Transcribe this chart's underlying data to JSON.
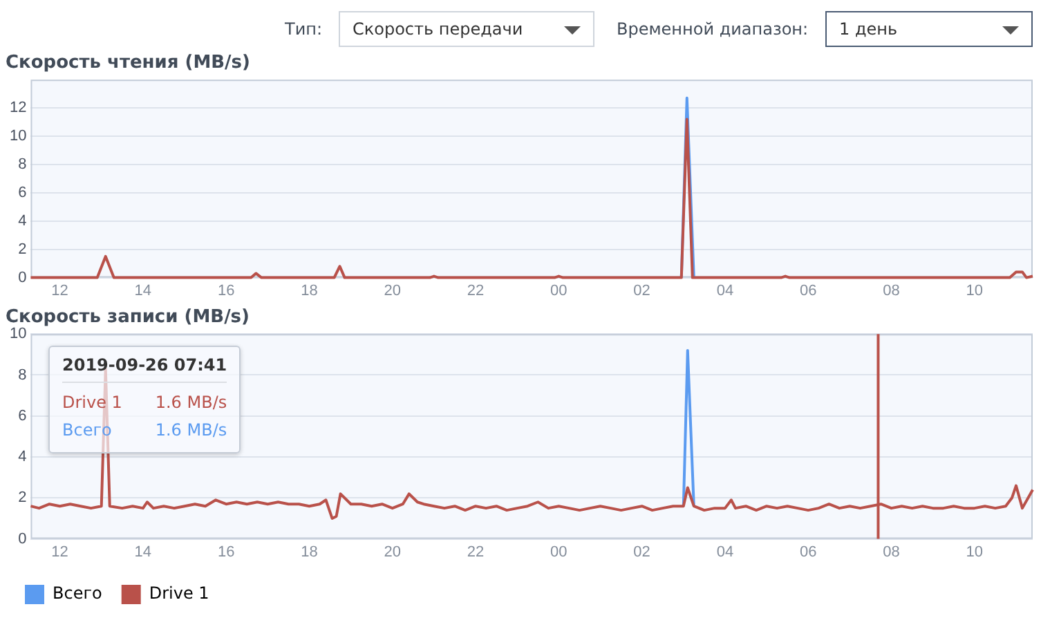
{
  "chart_data": [
    {
      "type": "line",
      "title": "Скорость чтения (MB/s)",
      "annotations": [
        "Тип:",
        "Скорость передачи",
        "Временной диапазон:",
        "1 день"
      ],
      "xlim": [
        "2019-09-25T11:18",
        "2019-09-26T11:24"
      ],
      "xticks": [
        {
          "value": "2019-09-25T12:00",
          "label": "12"
        },
        {
          "value": "2019-09-25T14:00",
          "label": "14"
        },
        {
          "value": "2019-09-25T16:00",
          "label": "16"
        },
        {
          "value": "2019-09-25T18:00",
          "label": "18"
        },
        {
          "value": "2019-09-25T20:00",
          "label": "20"
        },
        {
          "value": "2019-09-25T22:00",
          "label": "22"
        },
        {
          "value": "2019-09-26T00:00",
          "label": "00"
        },
        {
          "value": "2019-09-26T02:00",
          "label": "02"
        },
        {
          "value": "2019-09-26T04:00",
          "label": "04"
        },
        {
          "value": "2019-09-26T06:00",
          "label": "06"
        },
        {
          "value": "2019-09-26T08:00",
          "label": "08"
        },
        {
          "value": "2019-09-26T10:00",
          "label": "10"
        }
      ],
      "ylim": [
        0,
        14
      ],
      "yticks": [
        0,
        2,
        4,
        6,
        8,
        10,
        12
      ],
      "grid": "y",
      "legend": false,
      "marker": "none",
      "line_style": "solid",
      "series": [
        {
          "color": "#5b9bf0",
          "x": [
            "2019-09-26T02:57",
            "2019-09-26T03:05",
            "2019-09-26T03:15"
          ],
          "values": [
            0,
            12.7,
            0
          ]
        },
        {
          "color": "#b9514a",
          "x": [
            "2019-09-25T11:18",
            "2019-09-25T12:54",
            "2019-09-25T13:06",
            "2019-09-25T13:18",
            "2019-09-25T16:36",
            "2019-09-25T16:43",
            "2019-09-25T16:51",
            "2019-09-25T18:36",
            "2019-09-25T18:44",
            "2019-09-25T18:51",
            "2019-09-25T20:54",
            "2019-09-25T21:00",
            "2019-09-25T21:06",
            "2019-09-25T23:54",
            "2019-09-26T00:00",
            "2019-09-26T00:06",
            "2019-09-26T02:57",
            "2019-09-26T03:05",
            "2019-09-26T03:13",
            "2019-09-26T05:21",
            "2019-09-26T05:27",
            "2019-09-26T05:33",
            "2019-09-26T10:51",
            "2019-09-26T11:00",
            "2019-09-26T11:09",
            "2019-09-26T11:15",
            "2019-09-26T11:24"
          ],
          "values": [
            0,
            0,
            1.5,
            0,
            0,
            0.3,
            0,
            0,
            0.8,
            0,
            0,
            0.1,
            0,
            0,
            0.1,
            0,
            0,
            11.2,
            0,
            0,
            0.1,
            0,
            0,
            0.4,
            0.4,
            0,
            0.1
          ]
        }
      ]
    },
    {
      "type": "line",
      "title": "Скорость записи (MB/s)",
      "annotations": [
        "2019-09-26 07:41",
        "Drive 1",
        "1.6 MB/s",
        "Всего",
        "1.6 MB/s"
      ],
      "xlim": [
        "2019-09-25T11:18",
        "2019-09-26T11:24"
      ],
      "xticks": [
        {
          "value": "2019-09-25T12:00",
          "label": "12"
        },
        {
          "value": "2019-09-25T14:00",
          "label": "14"
        },
        {
          "value": "2019-09-25T16:00",
          "label": "16"
        },
        {
          "value": "2019-09-25T18:00",
          "label": "18"
        },
        {
          "value": "2019-09-25T20:00",
          "label": "20"
        },
        {
          "value": "2019-09-25T22:00",
          "label": "22"
        },
        {
          "value": "2019-09-26T00:00",
          "label": "00"
        },
        {
          "value": "2019-09-26T02:00",
          "label": "02"
        },
        {
          "value": "2019-09-26T04:00",
          "label": "04"
        },
        {
          "value": "2019-09-26T06:00",
          "label": "06"
        },
        {
          "value": "2019-09-26T08:00",
          "label": "08"
        },
        {
          "value": "2019-09-26T10:00",
          "label": "10"
        }
      ],
      "ylim": [
        0,
        10
      ],
      "yticks": [
        0,
        2,
        4,
        6,
        8,
        10
      ],
      "grid": "y",
      "legend": "bottom",
      "marker": "none",
      "line_style": "solid",
      "ref_lines": [
        {
          "axis": "x",
          "value": "2019-09-26T07:41",
          "color": "#b9514a"
        }
      ],
      "series": [
        {
          "name": "Всего",
          "color": "#5b9bf0",
          "x": [
            "2019-09-26T03:00",
            "2019-09-26T03:06",
            "2019-09-26T03:15"
          ],
          "values": [
            1.6,
            9.2,
            1.6
          ]
        },
        {
          "name": "Drive 1",
          "color": "#b9514a",
          "x": [
            "2019-09-25T11:18",
            "2019-09-25T11:30",
            "2019-09-25T11:45",
            "2019-09-25T12:00",
            "2019-09-25T12:15",
            "2019-09-25T12:30",
            "2019-09-25T12:45",
            "2019-09-25T13:00",
            "2019-09-25T13:06",
            "2019-09-25T13:12",
            "2019-09-25T13:30",
            "2019-09-25T13:45",
            "2019-09-25T14:00",
            "2019-09-25T14:06",
            "2019-09-25T14:15",
            "2019-09-25T14:30",
            "2019-09-25T14:45",
            "2019-09-25T15:00",
            "2019-09-25T15:15",
            "2019-09-25T15:30",
            "2019-09-25T15:45",
            "2019-09-25T16:00",
            "2019-09-25T16:15",
            "2019-09-25T16:30",
            "2019-09-25T16:45",
            "2019-09-25T17:00",
            "2019-09-25T17:15",
            "2019-09-25T17:30",
            "2019-09-25T17:45",
            "2019-09-25T18:00",
            "2019-09-25T18:15",
            "2019-09-25T18:24",
            "2019-09-25T18:33",
            "2019-09-25T18:39",
            "2019-09-25T18:45",
            "2019-09-25T19:00",
            "2019-09-25T19:15",
            "2019-09-25T19:30",
            "2019-09-25T19:45",
            "2019-09-25T20:00",
            "2019-09-25T20:15",
            "2019-09-25T20:24",
            "2019-09-25T20:36",
            "2019-09-25T20:45",
            "2019-09-25T21:00",
            "2019-09-25T21:15",
            "2019-09-25T21:30",
            "2019-09-25T21:45",
            "2019-09-25T22:00",
            "2019-09-25T22:15",
            "2019-09-25T22:30",
            "2019-09-25T22:45",
            "2019-09-25T23:00",
            "2019-09-25T23:15",
            "2019-09-25T23:30",
            "2019-09-25T23:45",
            "2019-09-26T00:00",
            "2019-09-26T00:15",
            "2019-09-26T00:30",
            "2019-09-26T00:45",
            "2019-09-26T01:00",
            "2019-09-26T01:15",
            "2019-09-26T01:30",
            "2019-09-26T01:45",
            "2019-09-26T02:00",
            "2019-09-26T02:15",
            "2019-09-26T02:30",
            "2019-09-26T02:45",
            "2019-09-26T03:00",
            "2019-09-26T03:06",
            "2019-09-26T03:15",
            "2019-09-26T03:30",
            "2019-09-26T03:45",
            "2019-09-26T04:00",
            "2019-09-26T04:09",
            "2019-09-26T04:15",
            "2019-09-26T04:30",
            "2019-09-26T04:45",
            "2019-09-26T05:00",
            "2019-09-26T05:15",
            "2019-09-26T05:30",
            "2019-09-26T05:45",
            "2019-09-26T06:00",
            "2019-09-26T06:15",
            "2019-09-26T06:30",
            "2019-09-26T06:45",
            "2019-09-26T07:00",
            "2019-09-26T07:15",
            "2019-09-26T07:30",
            "2019-09-26T07:45",
            "2019-09-26T08:00",
            "2019-09-26T08:15",
            "2019-09-26T08:30",
            "2019-09-26T08:45",
            "2019-09-26T09:00",
            "2019-09-26T09:15",
            "2019-09-26T09:30",
            "2019-09-26T09:45",
            "2019-09-26T10:00",
            "2019-09-26T10:15",
            "2019-09-26T10:30",
            "2019-09-26T10:45",
            "2019-09-26T10:54",
            "2019-09-26T11:00",
            "2019-09-26T11:09",
            "2019-09-26T11:24"
          ],
          "values": [
            1.6,
            1.5,
            1.7,
            1.6,
            1.7,
            1.6,
            1.5,
            1.6,
            8.3,
            1.6,
            1.5,
            1.6,
            1.5,
            1.8,
            1.5,
            1.6,
            1.5,
            1.6,
            1.7,
            1.6,
            1.9,
            1.7,
            1.8,
            1.7,
            1.8,
            1.7,
            1.8,
            1.7,
            1.7,
            1.6,
            1.7,
            1.9,
            1.0,
            1.1,
            2.2,
            1.7,
            1.7,
            1.6,
            1.7,
            1.5,
            1.7,
            2.2,
            1.8,
            1.7,
            1.6,
            1.5,
            1.6,
            1.4,
            1.6,
            1.5,
            1.6,
            1.4,
            1.5,
            1.6,
            1.8,
            1.5,
            1.6,
            1.5,
            1.4,
            1.5,
            1.6,
            1.5,
            1.4,
            1.5,
            1.6,
            1.4,
            1.5,
            1.6,
            1.6,
            2.5,
            1.6,
            1.4,
            1.5,
            1.5,
            1.9,
            1.5,
            1.6,
            1.4,
            1.6,
            1.5,
            1.6,
            1.5,
            1.4,
            1.5,
            1.7,
            1.5,
            1.6,
            1.5,
            1.6,
            1.7,
            1.5,
            1.6,
            1.5,
            1.6,
            1.5,
            1.5,
            1.6,
            1.5,
            1.5,
            1.6,
            1.5,
            1.6,
            2.0,
            2.6,
            1.5,
            2.4
          ]
        }
      ]
    }
  ]
}
